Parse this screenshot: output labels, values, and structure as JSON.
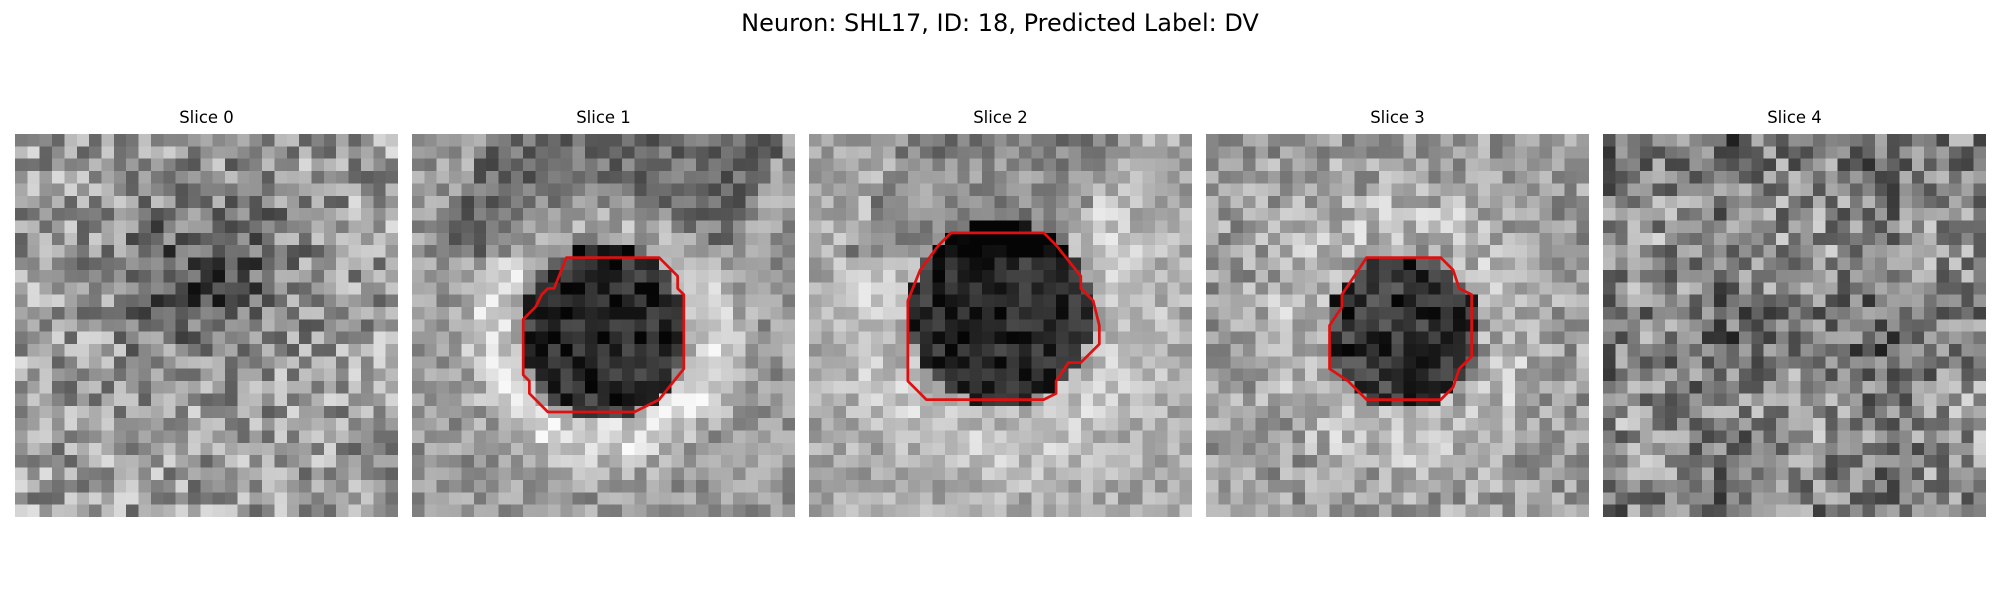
{
  "figure": {
    "title": "Neuron: SHL17, ID: 18, Predicted Label: DV"
  },
  "panels": [
    {
      "label": "Slice 0",
      "has_contour": false
    },
    {
      "label": "Slice 1",
      "has_contour": true
    },
    {
      "label": "Slice 2",
      "has_contour": true
    },
    {
      "label": "Slice 3",
      "has_contour": true
    },
    {
      "label": "Slice 4",
      "has_contour": false
    }
  ],
  "colors": {
    "background": "#ffffff",
    "contour": "#e01010",
    "colormap": "grayscale"
  }
}
